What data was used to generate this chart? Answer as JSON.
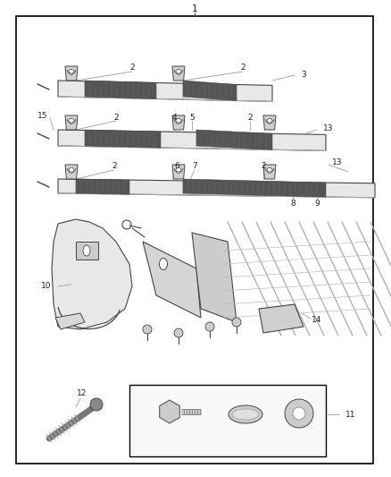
{
  "bg_color": "#ffffff",
  "border_color": "#000000",
  "line_color": "#444444",
  "gray": "#888888",
  "light_gray": "#cccccc",
  "dark_gray": "#666666",
  "fig_width": 4.38,
  "fig_height": 5.33,
  "dpi": 100
}
